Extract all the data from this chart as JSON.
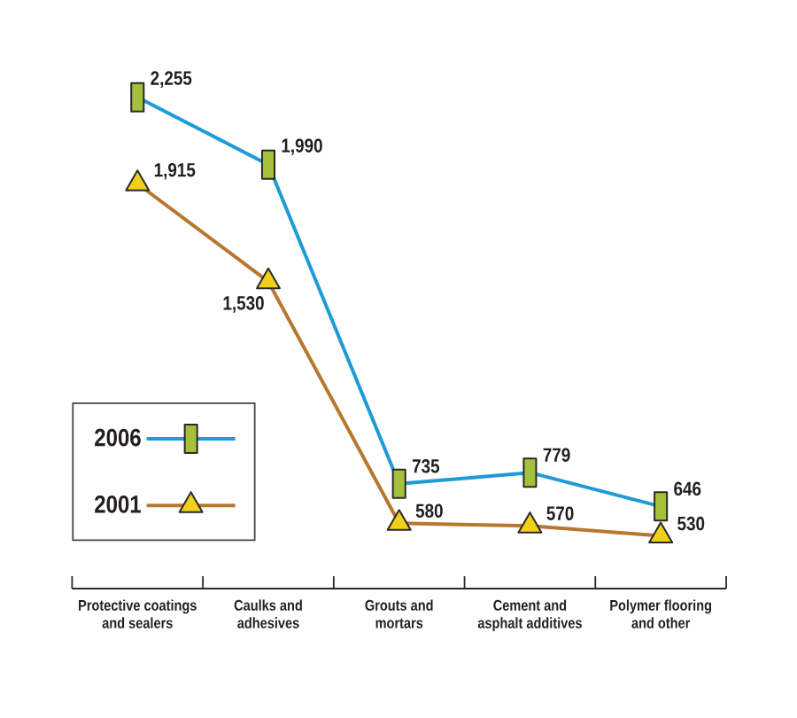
{
  "chart_data": {
    "type": "line",
    "categories": [
      "Protective coatings and sealers",
      "Caulks and adhesives",
      "Grouts and mortars",
      "Cement and asphalt additives",
      "Polymer flooring and other"
    ],
    "series": [
      {
        "name": "2006",
        "color": "#1e9bd7",
        "marker": "square",
        "values": [
          2255,
          1990,
          735,
          779,
          646
        ],
        "value_labels": [
          "2,255",
          "1,990",
          "735",
          "779",
          "646"
        ]
      },
      {
        "name": "2001",
        "color": "#b8772f",
        "marker": "triangle",
        "values": [
          1915,
          1530,
          580,
          570,
          530
        ],
        "value_labels": [
          "1,915",
          "1,530",
          "580",
          "570",
          "530"
        ]
      }
    ],
    "legend": "bottom left",
    "line_style": "solid"
  }
}
